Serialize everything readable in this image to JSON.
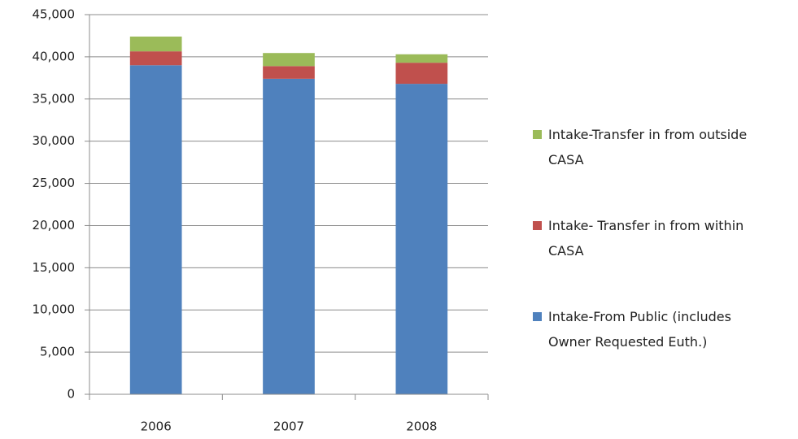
{
  "chart_data": {
    "type": "stacked_bar",
    "categories": [
      "2006",
      "2007",
      "2008"
    ],
    "series": [
      {
        "name": "Intake-From Public (includes Owner Requested Euth.)",
        "color": "#4f81bd",
        "values": [
          39000,
          37400,
          36800
        ]
      },
      {
        "name": "Intake- Transfer in from within CASA",
        "color": "#c0504d",
        "values": [
          1650,
          1500,
          2500
        ]
      },
      {
        "name": "Intake-Transfer in from outside CASA",
        "color": "#9bbb59",
        "values": [
          1750,
          1550,
          1000
        ]
      }
    ],
    "ylim": [
      0,
      45000
    ],
    "yticks": [
      0,
      {
        "value": 5000,
        "label": "5,000"
      },
      {
        "value": 10000,
        "label": "10,000"
      },
      {
        "value": 15000,
        "label": "15,000"
      },
      {
        "value": 20000,
        "label": "20,000"
      },
      {
        "value": 25000,
        "label": "25,000"
      },
      {
        "value": 30000,
        "label": "30,000"
      },
      {
        "value": 35000,
        "label": "35,000"
      },
      {
        "value": 40000,
        "label": "40,000"
      },
      {
        "value": 45000,
        "label": "45,000"
      }
    ],
    "grid": true,
    "legend": "right"
  }
}
